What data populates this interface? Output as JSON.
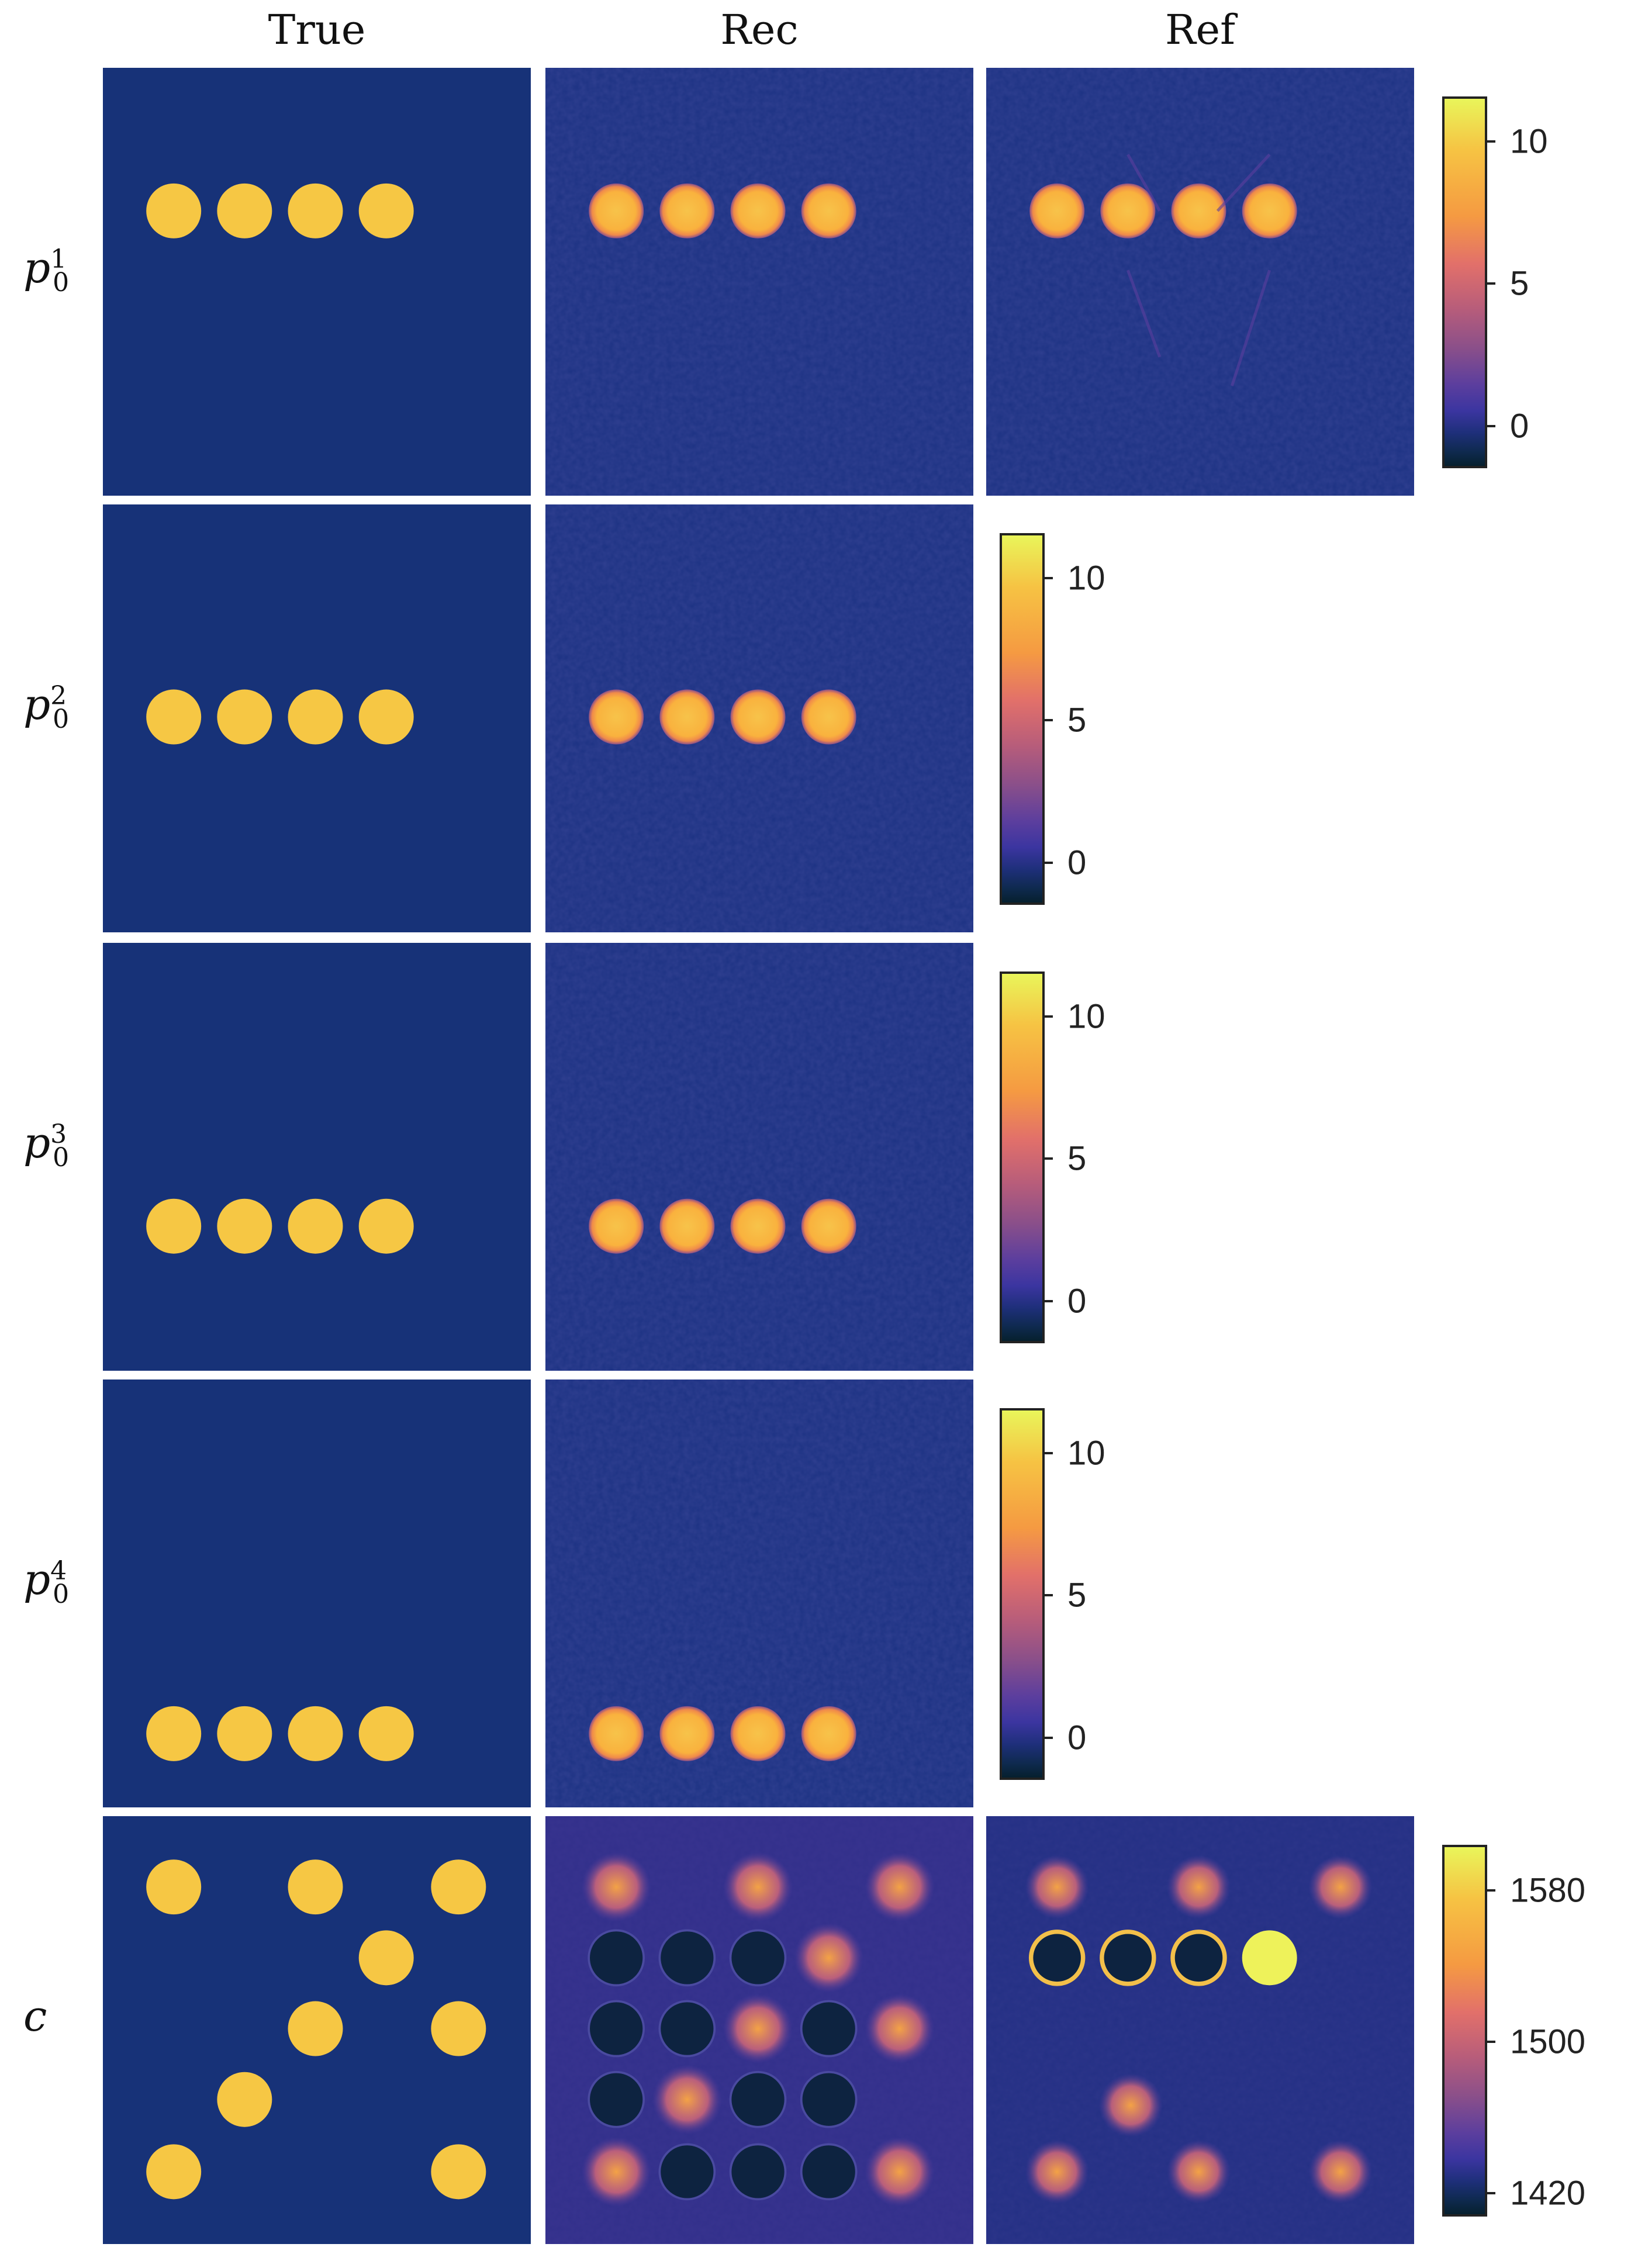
{
  "columns": [
    "True",
    "Rec",
    "Ref"
  ],
  "rows": [
    {
      "base": "p",
      "sub": "0",
      "sup": "1"
    },
    {
      "base": "p",
      "sub": "0",
      "sup": "2"
    },
    {
      "base": "p",
      "sub": "0",
      "sup": "3"
    },
    {
      "base": "p",
      "sub": "0",
      "sup": "4"
    },
    {
      "base": "c",
      "sub": "",
      "sup": ""
    }
  ],
  "colorbars": {
    "pressure": {
      "range": [
        -1.4,
        11.5
      ],
      "ticks": [
        {
          "value": 0,
          "label": "0"
        },
        {
          "value": 5,
          "label": "5"
        },
        {
          "value": 10,
          "label": "10"
        }
      ]
    },
    "sound_speed": {
      "range": [
        1409,
        1603
      ],
      "ticks": [
        {
          "value": 1420,
          "label": "1420"
        },
        {
          "value": 1500,
          "label": "1500"
        },
        {
          "value": 1580,
          "label": "1580"
        }
      ]
    }
  },
  "colors": {
    "background": "#173278",
    "inclusion": "#f6c744",
    "rec_background": "#1c3283",
    "colormap_low": "#06202e",
    "colormap_high": "#e9f55a"
  }
}
